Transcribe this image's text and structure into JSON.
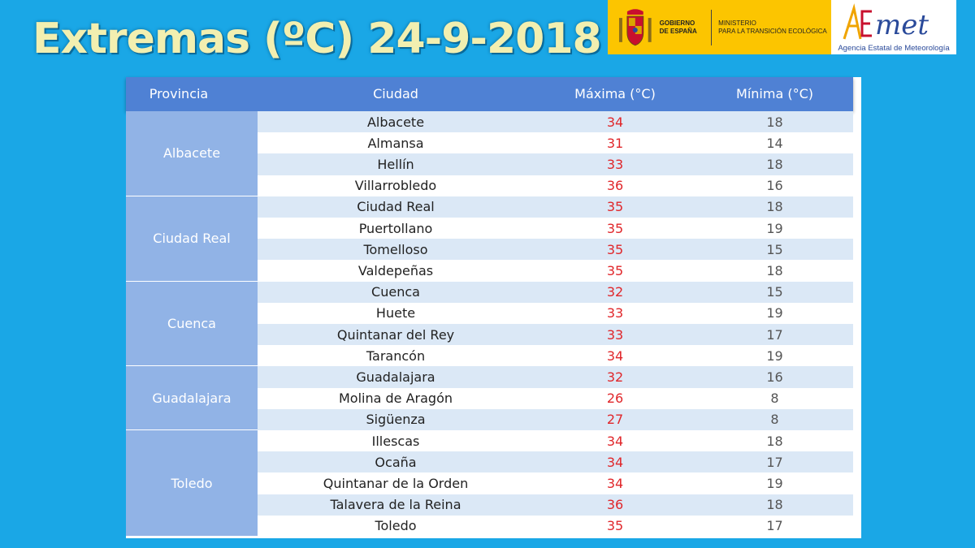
{
  "header": {
    "title": "Extremas (ºC) 24-9-2018",
    "gov_line1": "GOBIERNO",
    "gov_line2": "DE ESPAÑA",
    "ministry_line1": "MINISTERIO",
    "ministry_line2": "PARA LA TRANSICIÓN ECOLÓGICA",
    "aemet_logo": "AEMet",
    "aemet_subtitle": "Agencia Estatal de Meteorología"
  },
  "table": {
    "columns": [
      "Provincia",
      "Ciudad",
      "Máxima (°C)",
      "Mínima (°C)"
    ],
    "groups": [
      {
        "provincia": "Albacete",
        "rows": [
          {
            "ciudad": "Albacete",
            "max": "34",
            "min": "18"
          },
          {
            "ciudad": "Almansa",
            "max": "31",
            "min": "14"
          },
          {
            "ciudad": "Hellín",
            "max": "33",
            "min": "18"
          },
          {
            "ciudad": "Villarrobledo",
            "max": "36",
            "min": "16"
          }
        ]
      },
      {
        "provincia": "Ciudad Real",
        "rows": [
          {
            "ciudad": "Ciudad Real",
            "max": "35",
            "min": "18"
          },
          {
            "ciudad": "Puertollano",
            "max": "35",
            "min": "19"
          },
          {
            "ciudad": "Tomelloso",
            "max": "35",
            "min": "15"
          },
          {
            "ciudad": "Valdepeñas",
            "max": "35",
            "min": "18"
          }
        ]
      },
      {
        "provincia": "Cuenca",
        "rows": [
          {
            "ciudad": "Cuenca",
            "max": "32",
            "min": "15"
          },
          {
            "ciudad": "Huete",
            "max": "33",
            "min": "19"
          },
          {
            "ciudad": "Quintanar del Rey",
            "max": "33",
            "min": "17"
          },
          {
            "ciudad": "Tarancón",
            "max": "34",
            "min": "19"
          }
        ]
      },
      {
        "provincia": "Guadalajara",
        "rows": [
          {
            "ciudad": "Guadalajara",
            "max": "32",
            "min": "16"
          },
          {
            "ciudad": "Molina de Aragón",
            "max": "26",
            "min": "8"
          },
          {
            "ciudad": "Sigüenza",
            "max": "27",
            "min": "8"
          }
        ]
      },
      {
        "provincia": "Toledo",
        "rows": [
          {
            "ciudad": "Illescas",
            "max": "34",
            "min": "18"
          },
          {
            "ciudad": "Ocaña",
            "max": "34",
            "min": "17"
          },
          {
            "ciudad": "Quintanar de la Orden",
            "max": "34",
            "min": "19"
          },
          {
            "ciudad": "Talavera de la Reina",
            "max": "36",
            "min": "18"
          },
          {
            "ciudad": "Toledo",
            "max": "35",
            "min": "17"
          }
        ]
      }
    ]
  },
  "colors": {
    "background": "#1aa7e6",
    "header_row": "#4f81d4",
    "province_cell": "#91b3e6",
    "max_text": "#e0262a",
    "gov_banner": "#fcc500"
  },
  "icons": [
    "spain-coat-of-arms-icon",
    "aemet-logo"
  ]
}
